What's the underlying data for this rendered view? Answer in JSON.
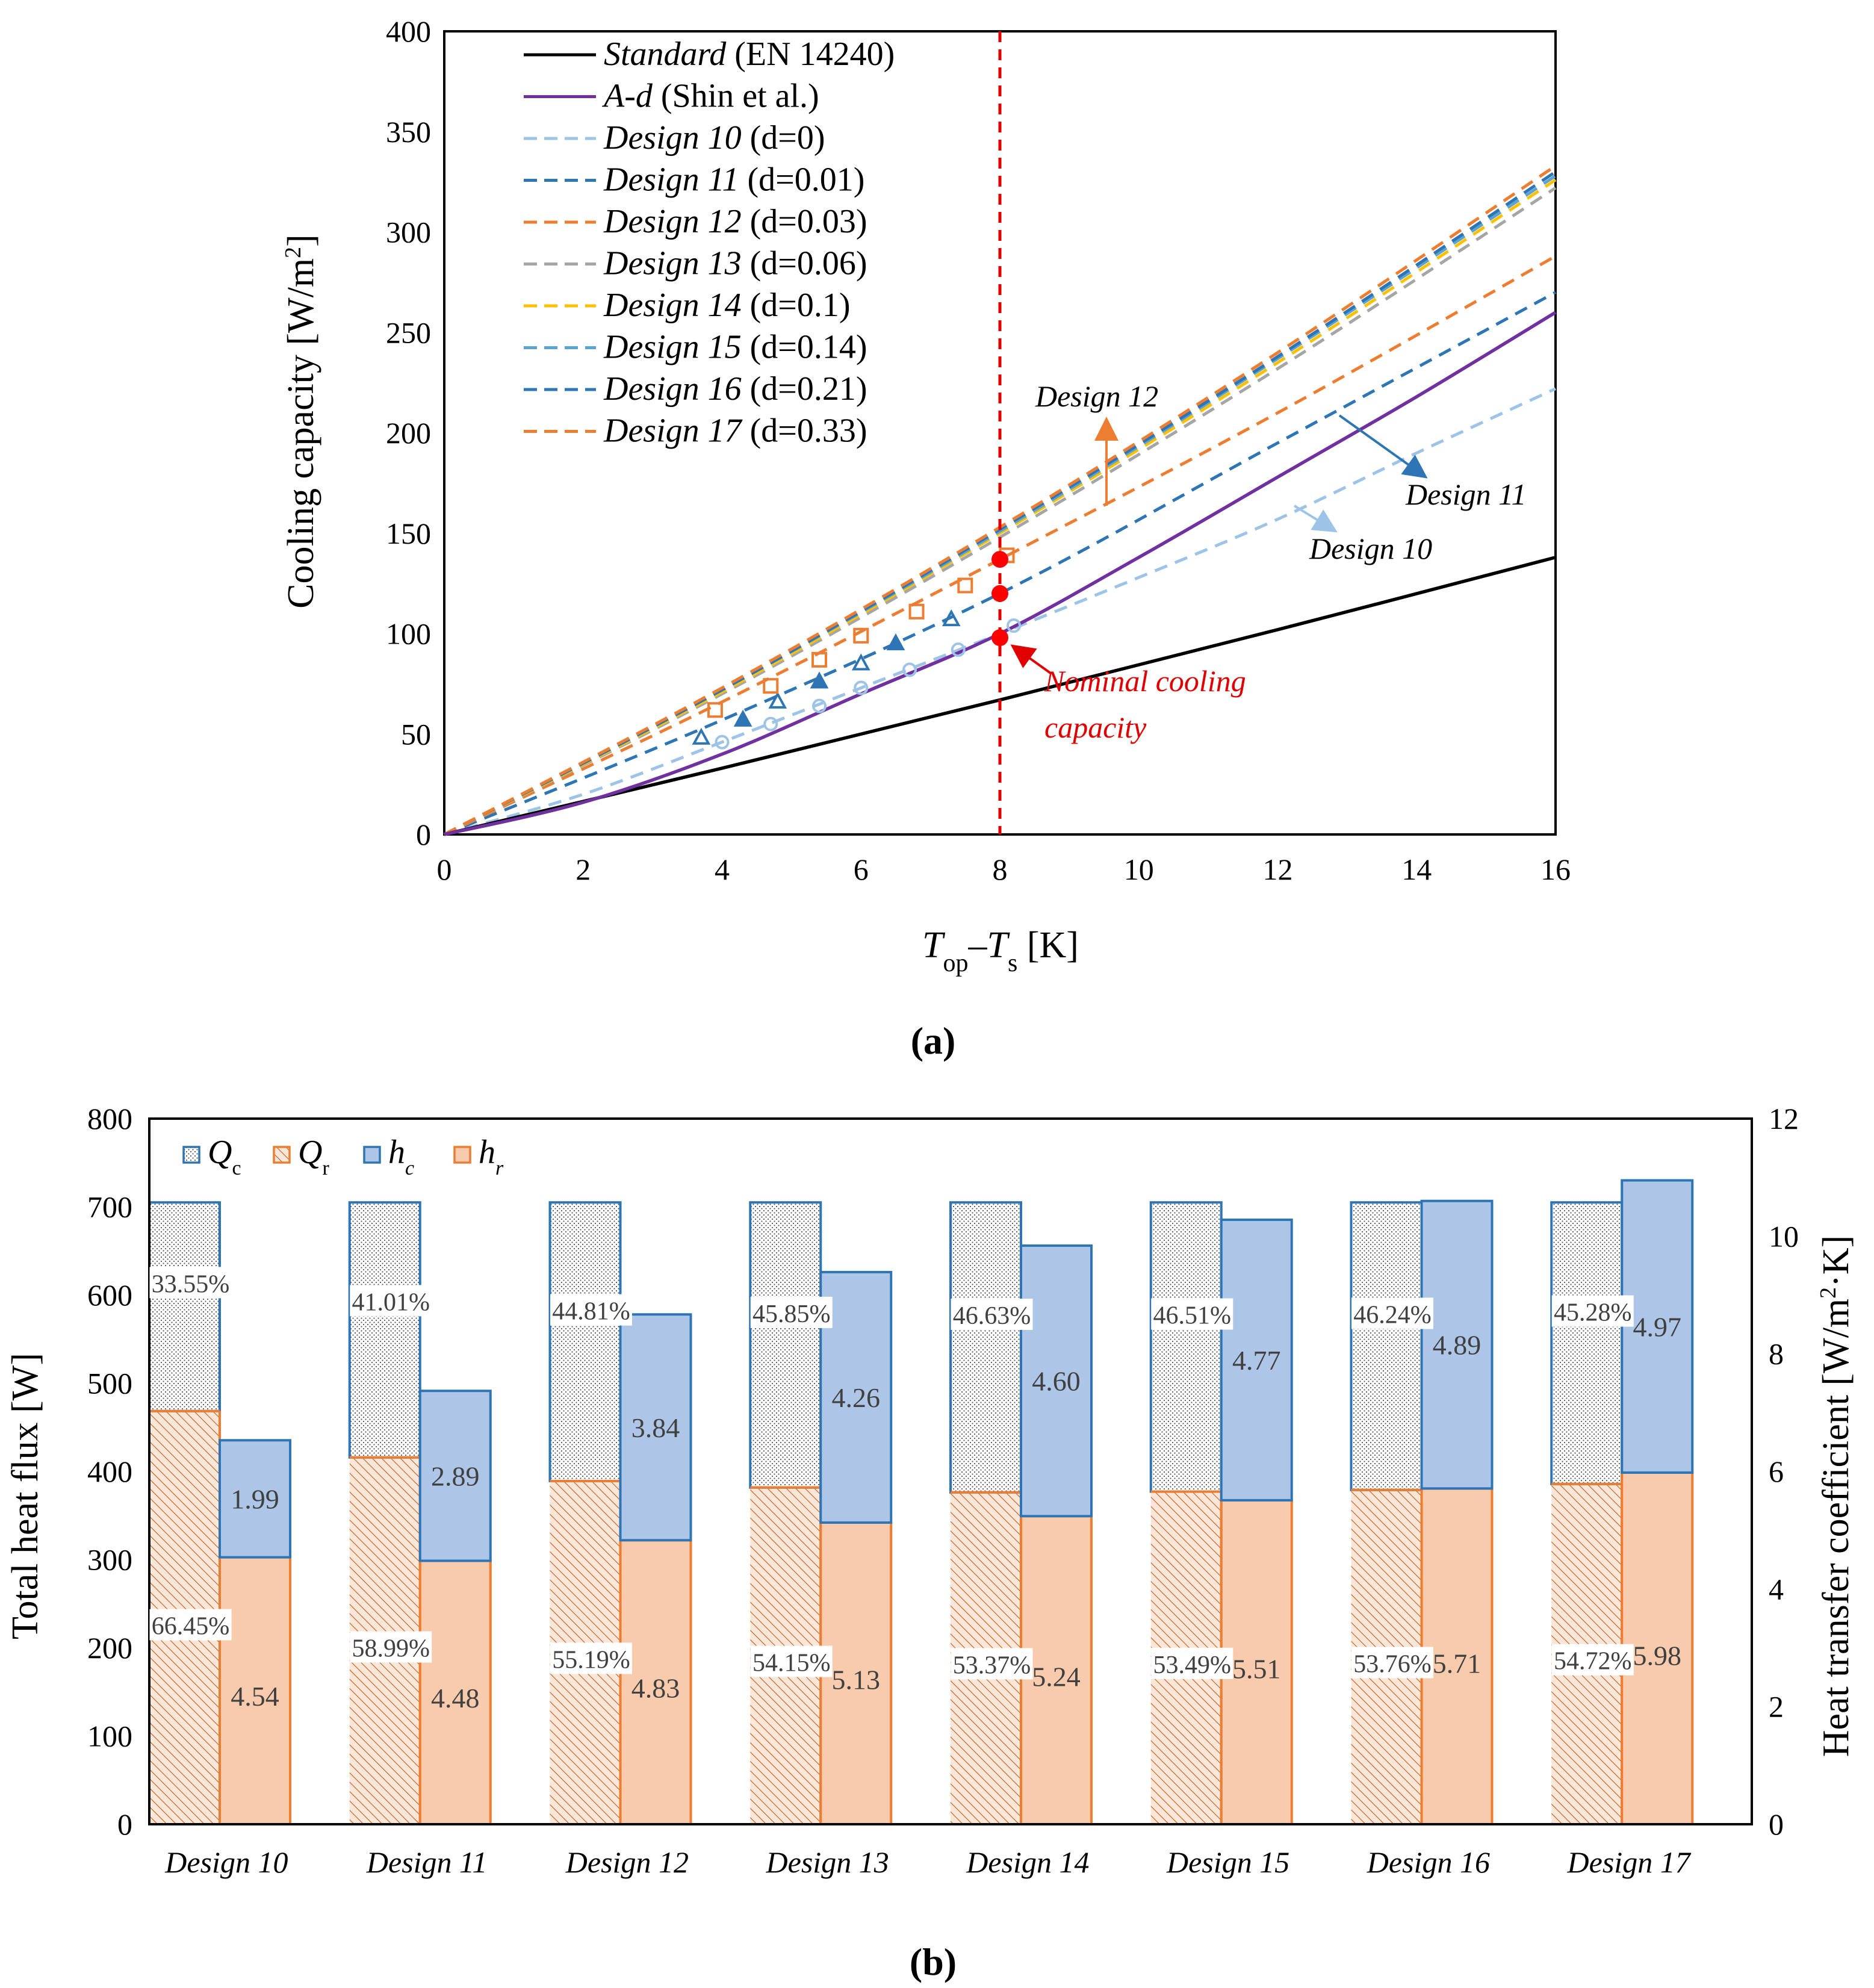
{
  "chart_data": [
    {
      "type": "line",
      "panel_label": "(a)",
      "ylabel": "Cooling capacity [W/m²]",
      "ylabel_parts": {
        "main": "Cooling capacity [W/m",
        "sup": "2",
        "end": "]"
      },
      "xlabel_parts": {
        "T1": "T",
        "sub1": "op",
        "dash": "–",
        "T2": "T",
        "sub2": "s",
        "unit": " [K]"
      },
      "xlim": [
        0,
        16
      ],
      "ylim": [
        0,
        400
      ],
      "xticks": [
        "0",
        "2",
        "4",
        "6",
        "8",
        "10",
        "12",
        "14",
        "16"
      ],
      "yticks": [
        "0",
        "50",
        "100",
        "150",
        "200",
        "250",
        "300",
        "350",
        "400"
      ],
      "nominal_line_x": 8,
      "series": [
        {
          "name_it": "Standard",
          "name_rest": " (EN 14240)",
          "color": "#000000",
          "dash": false,
          "x": [
            0,
            4,
            8,
            12,
            16
          ],
          "y": [
            0,
            33,
            67,
            102,
            138
          ]
        },
        {
          "name_it": "A-d",
          "name_rest": "  (Shin et al.)",
          "color": "#7030a0",
          "dash": false,
          "x": [
            0,
            2,
            4,
            6,
            8,
            10,
            12,
            14,
            16
          ],
          "y": [
            0,
            16,
            40,
            70,
            100,
            138,
            178,
            218,
            260
          ]
        },
        {
          "name_it": "Design 10",
          "name_rest": "  (d=0)",
          "color": "#9dc3e6",
          "dash": true,
          "x": [
            0,
            2,
            4,
            6,
            8,
            10,
            12,
            14,
            16
          ],
          "y": [
            0,
            20,
            46,
            73,
            100,
            128,
            157,
            190,
            222
          ]
        },
        {
          "name_it": "Design 11",
          "name_rest": "  (d=0.01)",
          "color": "#2e75b6",
          "dash": true,
          "x": [
            0,
            4,
            8,
            12,
            16
          ],
          "y": [
            0,
            57,
            120,
            195,
            270
          ]
        },
        {
          "name_it": "Design 12",
          "name_rest": "  (d=0.03)",
          "color": "#ed7d31",
          "dash": true,
          "x": [
            0,
            4,
            8,
            12,
            16
          ],
          "y": [
            0,
            66,
            137,
            210,
            288
          ]
        },
        {
          "name_it": "Design 13",
          "name_rest": "  (d=0.06)",
          "color": "#a5a5a5",
          "dash": true,
          "x": [
            0,
            4,
            8,
            12,
            16
          ],
          "y": [
            0,
            70,
            148,
            232,
            322
          ]
        },
        {
          "name_it": "Design 14",
          "name_rest": "  (d=0.1)",
          "color": "#ffc000",
          "dash": true,
          "x": [
            0,
            4,
            8,
            12,
            16
          ],
          "y": [
            0,
            71,
            150,
            235,
            326
          ]
        },
        {
          "name_it": "Design 15",
          "name_rest": "  (d=0.14)",
          "color": "#5ba3d0",
          "dash": true,
          "x": [
            0,
            4,
            8,
            12,
            16
          ],
          "y": [
            0,
            72,
            151,
            237,
            328
          ]
        },
        {
          "name_it": "Design 16",
          "name_rest": "  (d=0.21)",
          "color": "#2e75b6",
          "dash": true,
          "x": [
            0,
            4,
            8,
            12,
            16
          ],
          "y": [
            0,
            72,
            152,
            238,
            330
          ]
        },
        {
          "name_it": "Design 17",
          "name_rest": "  (d=0.33)",
          "color": "#ed7d31",
          "dash": true,
          "x": [
            0,
            4,
            8,
            12,
            16
          ],
          "y": [
            0,
            73,
            153,
            240,
            333
          ]
        }
      ],
      "markers": [
        {
          "name": "Design 10 measured",
          "color": "#9dc3e6",
          "shape": "circle",
          "x": [
            4.0,
            4.7,
            5.4,
            6.0,
            6.7,
            7.4,
            8.2
          ],
          "y": [
            46,
            55,
            64,
            73,
            82,
            92,
            104
          ]
        },
        {
          "name": "Design 11 measured",
          "color": "#2e75b6",
          "shape": "triangle",
          "x": [
            3.7,
            4.3,
            4.8,
            5.4,
            6.0,
            6.5,
            7.3
          ],
          "y": [
            48,
            57,
            66,
            76,
            85,
            95,
            107
          ]
        },
        {
          "name": "Design 12 measured",
          "color": "#ed7d31",
          "shape": "square",
          "x": [
            3.9,
            4.7,
            5.4,
            6.0,
            6.8,
            7.5,
            8.1
          ],
          "y": [
            62,
            74,
            87,
            99,
            111,
            124,
            139
          ]
        }
      ],
      "nominal_points": {
        "x": [
          8,
          8,
          8
        ],
        "y": [
          98,
          120,
          137
        ]
      },
      "annotations": {
        "design12": "Design 12",
        "design11": "Design 11",
        "design10": "Design 10",
        "nominal_line1": "Nominal cooling",
        "nominal_line2": "capacity"
      }
    },
    {
      "type": "bar",
      "panel_label": "(b)",
      "ylabel": "Total heat flux [W]",
      "y2label": "Heat transfer coefficient [W/m²·K]",
      "y2label_parts": {
        "main": "Heat transfer coefficient [W/m",
        "sup": "2",
        "end": "·K]"
      },
      "ylim": [
        0,
        800
      ],
      "y2lim": [
        0,
        12
      ],
      "yticks": [
        "0",
        "100",
        "200",
        "300",
        "400",
        "500",
        "600",
        "700",
        "800"
      ],
      "y2ticks": [
        "0",
        "2",
        "4",
        "6",
        "8",
        "10",
        "12"
      ],
      "legend": [
        {
          "label_main": "Q",
          "label_sub": "c",
          "sub_italic": false
        },
        {
          "label_main": "Q",
          "label_sub": "r",
          "sub_italic": false
        },
        {
          "label_main": "h",
          "label_sub": "c",
          "sub_italic": true
        },
        {
          "label_main": "h",
          "label_sub": "r",
          "sub_italic": true
        }
      ],
      "categories": [
        "Design 10",
        "Design 11",
        "Design 12",
        "Design 13",
        "Design 14",
        "Design 15",
        "Design 16",
        "Design 17"
      ],
      "total_heat_flux": [
        705,
        705,
        705,
        705,
        705,
        705,
        705,
        705
      ],
      "Qr_percent_values": [
        66.45,
        58.99,
        55.19,
        54.15,
        53.37,
        53.49,
        53.76,
        54.72
      ],
      "Qc_labels": [
        "33.55%",
        "41.01%",
        "44.81%",
        "45.85%",
        "46.63%",
        "46.51%",
        "46.24%",
        "45.28%"
      ],
      "Qr_labels": [
        "66.45%",
        "58.99%",
        "55.19%",
        "54.15%",
        "53.37%",
        "53.49%",
        "53.76%",
        "54.72%"
      ],
      "hc_values": [
        1.99,
        2.89,
        3.84,
        4.26,
        4.6,
        4.77,
        4.89,
        4.97
      ],
      "hr_values": [
        4.54,
        4.48,
        4.83,
        5.13,
        5.24,
        5.51,
        5.71,
        5.98
      ],
      "hc_labels": [
        "1.99",
        "2.89",
        "3.84",
        "4.26",
        "4.60",
        "4.77",
        "4.89",
        "4.97"
      ],
      "hr_labels": [
        "4.54",
        "4.48",
        "4.83",
        "5.13",
        "5.24",
        "5.51",
        "5.71",
        "5.98"
      ],
      "colors": {
        "hc": "#2e75b6",
        "hc_fill": "#adc6e8",
        "hr": "#ed7d31",
        "hr_fill": "#f8cbad"
      }
    }
  ]
}
